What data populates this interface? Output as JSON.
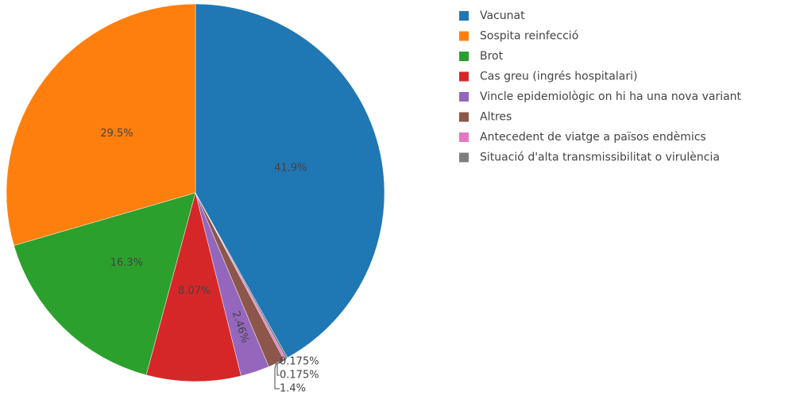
{
  "chart_data": {
    "type": "pie",
    "categories": [
      "Vacunat",
      "Sospita reinfecció",
      "Brot",
      "Cas greu (ingrés hospitalari)",
      "Vincle epidemiològic on hi ha una nova variant",
      "Altres",
      "Antecedent de viatge a països endèmics",
      "Situació d'alta transmissibilitat o virulència"
    ],
    "values": [
      41.9,
      29.5,
      16.3,
      8.07,
      2.46,
      1.4,
      0.175,
      0.175
    ],
    "value_labels": [
      "41.9%",
      "29.5%",
      "16.3%",
      "8.07%",
      "2.46%",
      "1.4%",
      "0.175%",
      "0.175%"
    ],
    "colors": [
      "#1f77b4",
      "#ff7f0e",
      "#2ca02c",
      "#d62728",
      "#9467bd",
      "#8c564b",
      "#e377c2",
      "#7f7f7f"
    ],
    "legend": "right"
  }
}
